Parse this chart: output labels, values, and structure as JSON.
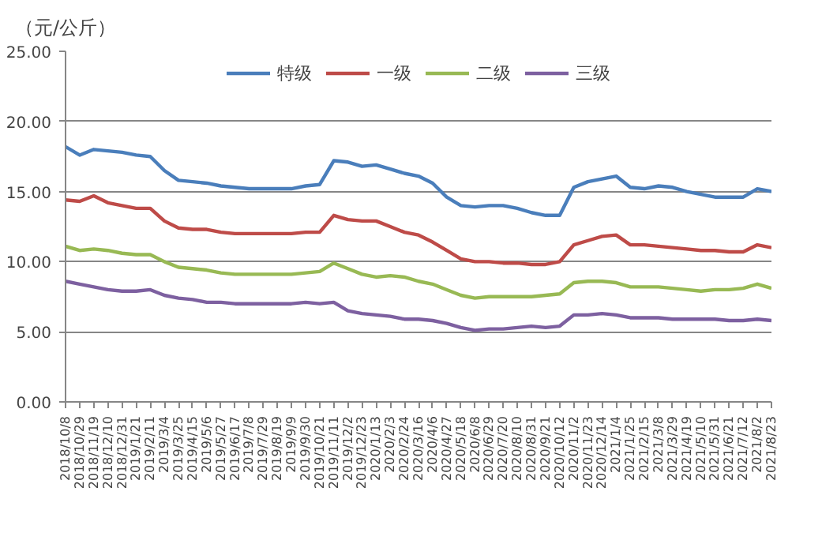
{
  "chart_data": {
    "type": "line",
    "ylabel": "（元/公斤）",
    "legend": "top",
    "grid": "y",
    "line_style": "solid",
    "marker": "none",
    "x": [
      "2018-10-08",
      "2018-10-29",
      "2018-11-19",
      "2018-12-10",
      "2018-12-31",
      "2019-01-21",
      "2019-02-11",
      "2019-03-04",
      "2019-03-25",
      "2019-04-15",
      "2019-05-06",
      "2019-05-27",
      "2019-06-17",
      "2019-07-08",
      "2019-07-29",
      "2019-08-19",
      "2019-09-09",
      "2019-09-30",
      "2019-10-21",
      "2019-11-11",
      "2019-12-02",
      "2019-12-23",
      "2020-01-13",
      "2020-02-03",
      "2020-02-24",
      "2020-03-16",
      "2020-04-06",
      "2020-04-27",
      "2020-05-18",
      "2020-06-08",
      "2020-06-29",
      "2020-07-20",
      "2020-08-10",
      "2020-08-31",
      "2020-09-21",
      "2020-10-12",
      "2020-11-02",
      "2020-11-23",
      "2020-12-14",
      "2021-01-04",
      "2021-01-25",
      "2021-02-15",
      "2021-03-08",
      "2021-03-29",
      "2021-04-19",
      "2021-05-10",
      "2021-05-31",
      "2021-06-21",
      "2021-07-12",
      "2021-08-02",
      "2021-08-23"
    ],
    "xlim": [
      "2018-10-08",
      "2021-08-23"
    ],
    "xticks": [
      {
        "value": "2018-10-08",
        "label": "2018/10/8"
      },
      {
        "value": "2018-10-29",
        "label": "2018/10/29"
      },
      {
        "value": "2018-11-19",
        "label": "2018/11/19"
      },
      {
        "value": "2018-12-10",
        "label": "2018/12/10"
      },
      {
        "value": "2018-12-31",
        "label": "2018/12/31"
      },
      {
        "value": "2019-01-21",
        "label": "2019/1/21"
      },
      {
        "value": "2019-02-11",
        "label": "2019/2/11"
      },
      {
        "value": "2019-03-04",
        "label": "2019/3/4"
      },
      {
        "value": "2019-03-25",
        "label": "2019/3/25"
      },
      {
        "value": "2019-04-15",
        "label": "2019/4/15"
      },
      {
        "value": "2019-05-06",
        "label": "2019/5/6"
      },
      {
        "value": "2019-05-27",
        "label": "2019/5/27"
      },
      {
        "value": "2019-06-17",
        "label": "2019/6/17"
      },
      {
        "value": "2019-07-08",
        "label": "2019/7/8"
      },
      {
        "value": "2019-07-29",
        "label": "2019/7/29"
      },
      {
        "value": "2019-08-19",
        "label": "2019/8/19"
      },
      {
        "value": "2019-09-09",
        "label": "2019/9/9"
      },
      {
        "value": "2019-09-30",
        "label": "2019/9/30"
      },
      {
        "value": "2019-10-21",
        "label": "2019/10/21"
      },
      {
        "value": "2019-11-11",
        "label": "2019/11/11"
      },
      {
        "value": "2019-12-02",
        "label": "2019/12/2"
      },
      {
        "value": "2019-12-23",
        "label": "2019/12/23"
      },
      {
        "value": "2020-01-13",
        "label": "2020/1/13"
      },
      {
        "value": "2020-02-03",
        "label": "2020/2/3"
      },
      {
        "value": "2020-02-24",
        "label": "2020/2/24"
      },
      {
        "value": "2020-03-16",
        "label": "2020/3/16"
      },
      {
        "value": "2020-04-06",
        "label": "2020/4/6"
      },
      {
        "value": "2020-04-27",
        "label": "2020/4/27"
      },
      {
        "value": "2020-05-18",
        "label": "2020/5/18"
      },
      {
        "value": "2020-06-08",
        "label": "2020/6/8"
      },
      {
        "value": "2020-06-29",
        "label": "2020/6/29"
      },
      {
        "value": "2020-07-20",
        "label": "2020/7/20"
      },
      {
        "value": "2020-08-10",
        "label": "2020/8/10"
      },
      {
        "value": "2020-08-31",
        "label": "2020/8/31"
      },
      {
        "value": "2020-09-21",
        "label": "2020/9/21"
      },
      {
        "value": "2020-10-12",
        "label": "2020/10/12"
      },
      {
        "value": "2020-11-02",
        "label": "2020/11/2"
      },
      {
        "value": "2020-11-23",
        "label": "2020/11/23"
      },
      {
        "value": "2020-12-14",
        "label": "2020/12/14"
      },
      {
        "value": "2021-01-04",
        "label": "2021/1/4"
      },
      {
        "value": "2021-01-25",
        "label": "2021/1/25"
      },
      {
        "value": "2021-02-15",
        "label": "2021/2/15"
      },
      {
        "value": "2021-03-08",
        "label": "2021/3/8"
      },
      {
        "value": "2021-03-29",
        "label": "2021/3/29"
      },
      {
        "value": "2021-04-19",
        "label": "2021/4/19"
      },
      {
        "value": "2021-05-10",
        "label": "2021/5/10"
      },
      {
        "value": "2021-05-31",
        "label": "2021/5/31"
      },
      {
        "value": "2021-06-21",
        "label": "2021/6/21"
      },
      {
        "value": "2021-07-12",
        "label": "2021/7/12"
      },
      {
        "value": "2021-08-02",
        "label": "2021/8/2"
      },
      {
        "value": "2021-08-23",
        "label": "2021/8/23"
      }
    ],
    "ylim": [
      0,
      25
    ],
    "yticks": [
      {
        "value": 0,
        "label": "0.00"
      },
      {
        "value": 5,
        "label": "5.00"
      },
      {
        "value": 10,
        "label": "10.00"
      },
      {
        "value": 15,
        "label": "15.00"
      },
      {
        "value": 20,
        "label": "20.00"
      },
      {
        "value": 25,
        "label": "25.00"
      }
    ],
    "series": [
      {
        "name": "特级",
        "color": "#4a7ebb",
        "values": [
          18.2,
          17.6,
          18.0,
          17.9,
          17.8,
          17.6,
          17.5,
          16.5,
          15.8,
          15.7,
          15.6,
          15.4,
          15.3,
          15.2,
          15.2,
          15.2,
          15.2,
          15.4,
          15.5,
          17.2,
          17.1,
          16.8,
          16.9,
          16.6,
          16.3,
          16.1,
          15.6,
          14.6,
          14.0,
          13.9,
          14.0,
          14.0,
          13.8,
          13.5,
          13.3,
          13.3,
          15.3,
          15.7,
          15.9,
          16.1,
          15.3,
          15.2,
          15.4,
          15.3,
          15.0,
          14.8,
          14.6,
          14.6,
          14.6,
          15.2,
          15.0
        ]
      },
      {
        "name": "一级",
        "color": "#be4b48",
        "values": [
          14.4,
          14.3,
          14.7,
          14.2,
          14.0,
          13.8,
          13.8,
          12.9,
          12.4,
          12.3,
          12.3,
          12.1,
          12.0,
          12.0,
          12.0,
          12.0,
          12.0,
          12.1,
          12.1,
          13.3,
          13.0,
          12.9,
          12.9,
          12.5,
          12.1,
          11.9,
          11.4,
          10.8,
          10.2,
          10.0,
          10.0,
          9.9,
          9.9,
          9.8,
          9.8,
          10.0,
          11.2,
          11.5,
          11.8,
          11.9,
          11.2,
          11.2,
          11.1,
          11.0,
          10.9,
          10.8,
          10.8,
          10.7,
          10.7,
          11.2,
          11.0
        ]
      },
      {
        "name": "二级",
        "color": "#98b954",
        "values": [
          11.1,
          10.8,
          10.9,
          10.8,
          10.6,
          10.5,
          10.5,
          10.0,
          9.6,
          9.5,
          9.4,
          9.2,
          9.1,
          9.1,
          9.1,
          9.1,
          9.1,
          9.2,
          9.3,
          9.9,
          9.5,
          9.1,
          8.9,
          9.0,
          8.9,
          8.6,
          8.4,
          8.0,
          7.6,
          7.4,
          7.5,
          7.5,
          7.5,
          7.5,
          7.6,
          7.7,
          8.5,
          8.6,
          8.6,
          8.5,
          8.2,
          8.2,
          8.2,
          8.1,
          8.0,
          7.9,
          8.0,
          8.0,
          8.1,
          8.4,
          8.1
        ]
      },
      {
        "name": "三级",
        "color": "#7d60a0",
        "values": [
          8.6,
          8.4,
          8.2,
          8.0,
          7.9,
          7.9,
          8.0,
          7.6,
          7.4,
          7.3,
          7.1,
          7.1,
          7.0,
          7.0,
          7.0,
          7.0,
          7.0,
          7.1,
          7.0,
          7.1,
          6.5,
          6.3,
          6.2,
          6.1,
          5.9,
          5.9,
          5.8,
          5.6,
          5.3,
          5.1,
          5.2,
          5.2,
          5.3,
          5.4,
          5.3,
          5.4,
          6.2,
          6.2,
          6.3,
          6.2,
          6.0,
          6.0,
          6.0,
          5.9,
          5.9,
          5.9,
          5.9,
          5.8,
          5.8,
          5.9,
          5.8
        ]
      }
    ]
  }
}
